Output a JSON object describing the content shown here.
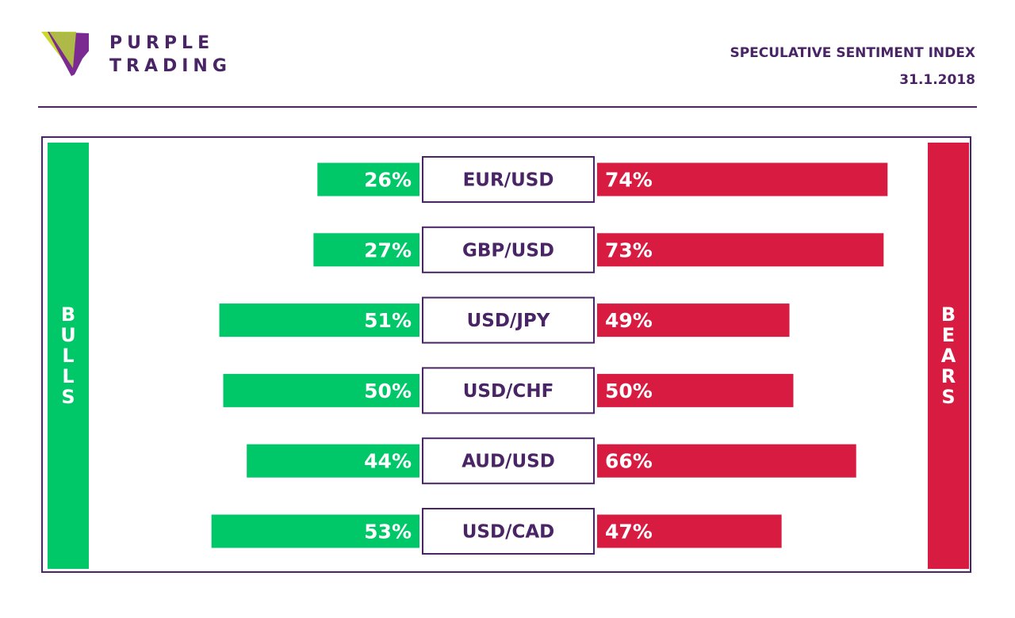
{
  "brand": {
    "line1": "PURPLE",
    "line2": "TRADING",
    "colors": {
      "purple": "#4a2565",
      "logo_purple": "#7b2a92",
      "logo_lime": "#c9d930"
    }
  },
  "header": {
    "title": "SPECULATIVE SENTIMENT INDEX",
    "date": "31.1.2018"
  },
  "sides": {
    "bulls": [
      "B",
      "U",
      "L",
      "L",
      "S"
    ],
    "bears": [
      "B",
      "E",
      "A",
      "R",
      "S"
    ]
  },
  "chart_data": {
    "type": "bar",
    "categories": [
      "EUR/USD",
      "GBP/USD",
      "USD/JPY",
      "USD/CHF",
      "AUD/USD",
      "USD/CAD"
    ],
    "series": [
      {
        "name": "BULLS",
        "color": "#00c767",
        "values": [
          26,
          27,
          51,
          50,
          44,
          53
        ],
        "labels": [
          "26%",
          "27%",
          "51%",
          "50%",
          "44%",
          "53%"
        ]
      },
      {
        "name": "BEARS",
        "color": "#d81b41",
        "values": [
          74,
          73,
          49,
          50,
          66,
          47
        ],
        "labels": [
          "74%",
          "73%",
          "49%",
          "50%",
          "66%",
          "47%"
        ]
      }
    ],
    "title": "SPECULATIVE SENTIMENT INDEX",
    "unit": "%",
    "ylim": [
      0,
      100
    ],
    "grid": false,
    "legend": "sides"
  }
}
